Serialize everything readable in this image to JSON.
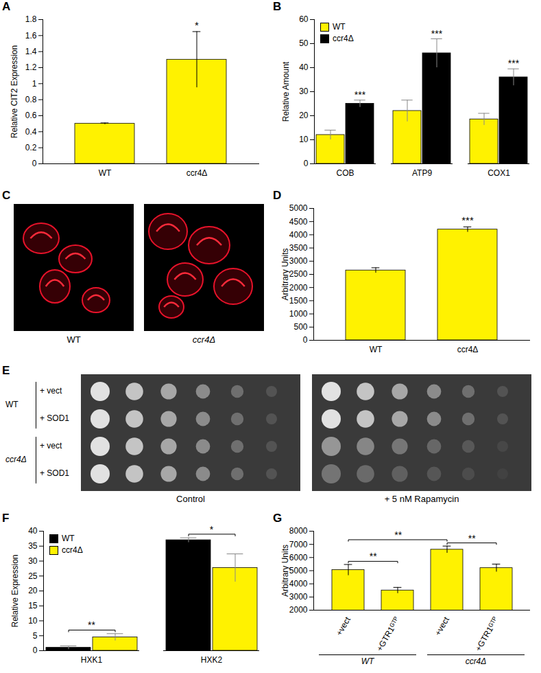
{
  "chart_data": [
    {
      "panel": "A",
      "type": "bar",
      "y_label": "Relative CIT2 Expression",
      "categories": [
        "WT",
        "ccr4Δ"
      ],
      "values": [
        0.5,
        1.3
      ],
      "errors": [
        0.01,
        0.35
      ],
      "color": "#fff200",
      "ylim": [
        0,
        1.8
      ],
      "yticks": [
        0,
        0.2,
        0.4,
        0.6,
        0.8,
        1,
        1.2,
        1.4,
        1.6,
        1.8
      ],
      "annotations": [
        {
          "category": "ccr4Δ",
          "text": "*"
        }
      ]
    },
    {
      "panel": "B",
      "type": "bar",
      "y_label": "Relative Amount",
      "categories": [
        "COB",
        "ATP9",
        "COX1"
      ],
      "series": [
        {
          "name": "WT",
          "color": "#fff200",
          "values": [
            12,
            22,
            18.5
          ],
          "errors": [
            2,
            4.5,
            2.5
          ]
        },
        {
          "name": "ccr4Δ",
          "color": "#000000",
          "values": [
            25,
            46,
            36
          ],
          "errors": [
            1.5,
            6,
            3.5
          ]
        }
      ],
      "ylim": [
        0,
        60
      ],
      "yticks": [
        0,
        10,
        20,
        30,
        40,
        50,
        60
      ],
      "legend": "top-left",
      "annotations": [
        {
          "category": "COB",
          "series": "ccr4Δ",
          "text": "***"
        },
        {
          "category": "ATP9",
          "series": "ccr4Δ",
          "text": "***"
        },
        {
          "category": "COX1",
          "series": "ccr4Δ",
          "text": "***"
        }
      ]
    },
    {
      "panel": "D",
      "type": "bar",
      "y_label": "Arbitrary Units",
      "categories": [
        "WT",
        "ccr4Δ"
      ],
      "values": [
        2650,
        4200
      ],
      "errors": [
        100,
        100
      ],
      "color": "#fff200",
      "ylim": [
        0,
        5000
      ],
      "yticks": [
        0,
        500,
        1000,
        1500,
        2000,
        2500,
        3000,
        3500,
        4000,
        4500,
        5000
      ],
      "annotations": [
        {
          "category": "ccr4Δ",
          "text": "***"
        }
      ]
    },
    {
      "panel": "F",
      "type": "bar",
      "y_label": "Relative Expression",
      "categories": [
        "HXK1",
        "HXK2"
      ],
      "series": [
        {
          "name": "WT",
          "color": "#000000",
          "values": [
            1,
            37
          ],
          "errors": [
            0.6,
            0.8
          ]
        },
        {
          "name": "ccr4Δ",
          "color": "#fff200",
          "values": [
            4.5,
            27.7
          ],
          "errors": [
            1.2,
            4.7
          ]
        }
      ],
      "ylim": [
        0,
        40
      ],
      "yticks": [
        0,
        5,
        10,
        15,
        20,
        25,
        30,
        35,
        40
      ],
      "legend": "top-left",
      "brackets": [
        {
          "category": "HXK1",
          "text": "**"
        },
        {
          "category": "HXK2",
          "text": "*"
        }
      ]
    },
    {
      "panel": "G",
      "type": "bar",
      "y_label": "Arbitrary Units",
      "categories": [
        "+vect",
        "+GTR1ᴳᵀᴾ",
        "+vect",
        "+GTR1ᴳᵀᴾ"
      ],
      "values": [
        5050,
        3500,
        6600,
        5200
      ],
      "errors": [
        420,
        230,
        270,
        300
      ],
      "color": "#fff200",
      "ylim": [
        2000,
        8000
      ],
      "yticks": [
        2000,
        3000,
        4000,
        5000,
        6000,
        7000,
        8000
      ],
      "groups": [
        {
          "label": "WT",
          "size": 2
        },
        {
          "label": "ccr4Δ",
          "size": 2
        }
      ],
      "brackets": [
        {
          "between": [
            0,
            1
          ],
          "text": "**"
        },
        {
          "between": [
            0,
            2
          ],
          "text": "**"
        },
        {
          "between": [
            2,
            3
          ],
          "text": "**"
        }
      ]
    }
  ],
  "images": [
    {
      "panel": "C",
      "captions": [
        "WT",
        "ccr4Δ"
      ]
    },
    {
      "panel": "E",
      "rows": [
        {
          "strain": "WT",
          "plasmids": [
            "+ vect",
            "+ SOD1"
          ]
        },
        {
          "strain": "ccr4Δ",
          "plasmids": [
            "+ vect",
            "+ SOD1"
          ]
        }
      ],
      "captions": [
        "Control",
        "+ 5 nM Rapamycin"
      ]
    }
  ]
}
